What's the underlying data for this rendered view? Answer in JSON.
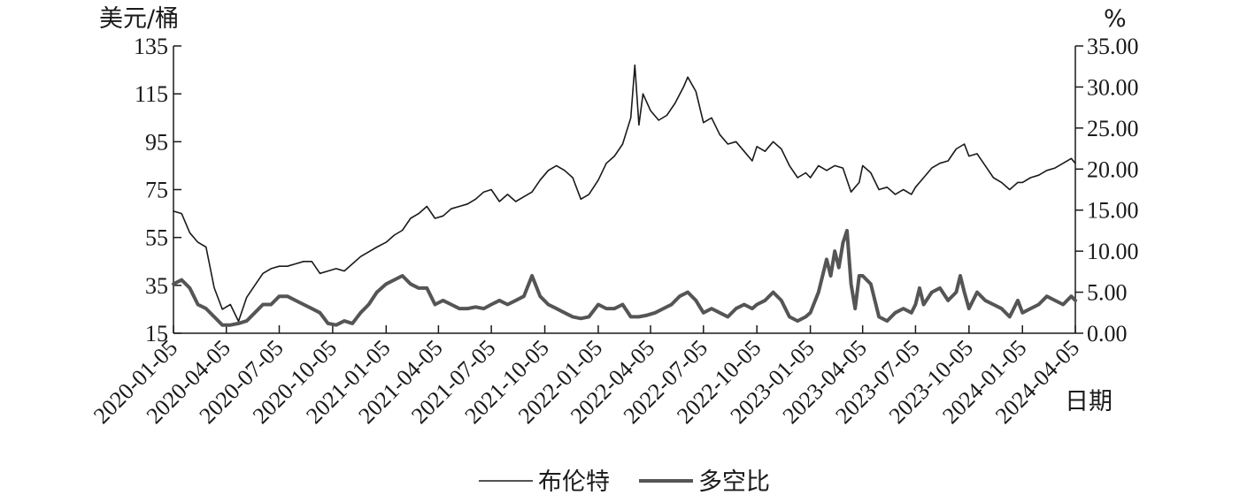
{
  "chart_data": {
    "type": "line",
    "left_axis": {
      "unit": "美元/桶",
      "ticks": [
        "15",
        "35",
        "55",
        "75",
        "95",
        "115",
        "135"
      ],
      "ylim": [
        15,
        135
      ]
    },
    "right_axis": {
      "unit": "%",
      "ticks": [
        "0.00",
        "5.00",
        "10.00",
        "15.00",
        "20.00",
        "25.00",
        "30.00",
        "35.00"
      ],
      "ylim": [
        0,
        35
      ]
    },
    "x_axis": {
      "label": "日期",
      "ticks": [
        "2020-01-05",
        "2020-04-05",
        "2020-07-05",
        "2020-10-05",
        "2021-01-05",
        "2021-04-05",
        "2021-07-05",
        "2021-10-05",
        "2022-01-05",
        "2022-04-05",
        "2022-07-05",
        "2022-10-05",
        "2023-01-05",
        "2023-04-05",
        "2023-07-05",
        "2023-10-05",
        "2024-01-05",
        "2024-04-05"
      ],
      "range": [
        "2020-01-05",
        "2024-04-05"
      ]
    },
    "legend": {
      "position": "bottom-center"
    },
    "series": [
      {
        "name": "布伦特",
        "axis": "left",
        "color": "#1a1a1a",
        "points": [
          [
            "2020-01-05",
            66
          ],
          [
            "2020-01-19",
            65
          ],
          [
            "2020-02-02",
            57
          ],
          [
            "2020-02-16",
            53
          ],
          [
            "2020-03-01",
            51
          ],
          [
            "2020-03-15",
            34
          ],
          [
            "2020-03-29",
            25
          ],
          [
            "2020-04-12",
            27
          ],
          [
            "2020-04-26",
            20
          ],
          [
            "2020-05-10",
            30
          ],
          [
            "2020-05-24",
            35
          ],
          [
            "2020-06-07",
            40
          ],
          [
            "2020-06-21",
            42
          ],
          [
            "2020-07-05",
            43
          ],
          [
            "2020-07-19",
            43
          ],
          [
            "2020-08-02",
            44
          ],
          [
            "2020-08-16",
            45
          ],
          [
            "2020-08-30",
            45
          ],
          [
            "2020-09-13",
            40
          ],
          [
            "2020-09-27",
            41
          ],
          [
            "2020-10-11",
            42
          ],
          [
            "2020-10-25",
            41
          ],
          [
            "2020-11-08",
            44
          ],
          [
            "2020-11-22",
            47
          ],
          [
            "2020-12-06",
            49
          ],
          [
            "2020-12-20",
            51
          ],
          [
            "2021-01-05",
            53
          ],
          [
            "2021-01-19",
            56
          ],
          [
            "2021-02-02",
            58
          ],
          [
            "2021-02-16",
            63
          ],
          [
            "2021-03-02",
            65
          ],
          [
            "2021-03-16",
            68
          ],
          [
            "2021-03-30",
            63
          ],
          [
            "2021-04-13",
            64
          ],
          [
            "2021-04-27",
            67
          ],
          [
            "2021-05-11",
            68
          ],
          [
            "2021-05-25",
            69
          ],
          [
            "2021-06-08",
            71
          ],
          [
            "2021-06-22",
            74
          ],
          [
            "2021-07-05",
            75
          ],
          [
            "2021-07-19",
            70
          ],
          [
            "2021-08-02",
            73
          ],
          [
            "2021-08-16",
            70
          ],
          [
            "2021-08-30",
            72
          ],
          [
            "2021-09-13",
            74
          ],
          [
            "2021-09-27",
            79
          ],
          [
            "2021-10-11",
            83
          ],
          [
            "2021-10-25",
            85
          ],
          [
            "2021-11-08",
            83
          ],
          [
            "2021-11-22",
            80
          ],
          [
            "2021-12-06",
            71
          ],
          [
            "2021-12-20",
            73
          ],
          [
            "2022-01-05",
            79
          ],
          [
            "2022-01-19",
            86
          ],
          [
            "2022-02-02",
            89
          ],
          [
            "2022-02-16",
            94
          ],
          [
            "2022-03-02",
            105
          ],
          [
            "2022-03-09",
            127
          ],
          [
            "2022-03-16",
            102
          ],
          [
            "2022-03-23",
            115
          ],
          [
            "2022-04-05",
            108
          ],
          [
            "2022-04-19",
            104
          ],
          [
            "2022-05-03",
            106
          ],
          [
            "2022-05-17",
            111
          ],
          [
            "2022-06-01",
            118
          ],
          [
            "2022-06-08",
            122
          ],
          [
            "2022-06-22",
            116
          ],
          [
            "2022-07-05",
            103
          ],
          [
            "2022-07-19",
            105
          ],
          [
            "2022-08-02",
            98
          ],
          [
            "2022-08-16",
            94
          ],
          [
            "2022-08-30",
            95
          ],
          [
            "2022-09-13",
            91
          ],
          [
            "2022-09-27",
            87
          ],
          [
            "2022-10-05",
            93
          ],
          [
            "2022-10-19",
            91
          ],
          [
            "2022-11-02",
            95
          ],
          [
            "2022-11-16",
            92
          ],
          [
            "2022-11-30",
            85
          ],
          [
            "2022-12-14",
            80
          ],
          [
            "2022-12-28",
            82
          ],
          [
            "2023-01-05",
            80
          ],
          [
            "2023-01-19",
            85
          ],
          [
            "2023-02-02",
            83
          ],
          [
            "2023-02-16",
            85
          ],
          [
            "2023-03-02",
            84
          ],
          [
            "2023-03-16",
            74
          ],
          [
            "2023-03-30",
            78
          ],
          [
            "2023-04-05",
            85
          ],
          [
            "2023-04-19",
            82
          ],
          [
            "2023-05-03",
            75
          ],
          [
            "2023-05-17",
            76
          ],
          [
            "2023-05-31",
            73
          ],
          [
            "2023-06-14",
            75
          ],
          [
            "2023-06-28",
            73
          ],
          [
            "2023-07-05",
            76
          ],
          [
            "2023-07-19",
            80
          ],
          [
            "2023-08-02",
            84
          ],
          [
            "2023-08-16",
            86
          ],
          [
            "2023-08-30",
            87
          ],
          [
            "2023-09-13",
            92
          ],
          [
            "2023-09-27",
            94
          ],
          [
            "2023-10-05",
            89
          ],
          [
            "2023-10-19",
            90
          ],
          [
            "2023-11-02",
            85
          ],
          [
            "2023-11-16",
            80
          ],
          [
            "2023-11-30",
            78
          ],
          [
            "2023-12-14",
            75
          ],
          [
            "2023-12-28",
            78
          ],
          [
            "2024-01-05",
            78
          ],
          [
            "2024-01-19",
            80
          ],
          [
            "2024-02-02",
            81
          ],
          [
            "2024-02-16",
            83
          ],
          [
            "2024-03-01",
            84
          ],
          [
            "2024-03-15",
            86
          ],
          [
            "2024-03-29",
            88
          ],
          [
            "2024-04-05",
            86
          ]
        ]
      },
      {
        "name": "多空比",
        "axis": "right",
        "color": "#555555",
        "points": [
          [
            "2020-01-05",
            6.0
          ],
          [
            "2020-01-19",
            6.5
          ],
          [
            "2020-02-02",
            5.5
          ],
          [
            "2020-02-16",
            3.5
          ],
          [
            "2020-03-01",
            3.0
          ],
          [
            "2020-03-15",
            2.0
          ],
          [
            "2020-03-29",
            1.0
          ],
          [
            "2020-04-12",
            1.0
          ],
          [
            "2020-04-26",
            1.2
          ],
          [
            "2020-05-10",
            1.5
          ],
          [
            "2020-05-24",
            2.5
          ],
          [
            "2020-06-07",
            3.5
          ],
          [
            "2020-06-21",
            3.5
          ],
          [
            "2020-07-05",
            4.5
          ],
          [
            "2020-07-19",
            4.5
          ],
          [
            "2020-08-02",
            4.0
          ],
          [
            "2020-08-16",
            3.5
          ],
          [
            "2020-08-30",
            3.0
          ],
          [
            "2020-09-13",
            2.5
          ],
          [
            "2020-09-27",
            1.2
          ],
          [
            "2020-10-11",
            1.0
          ],
          [
            "2020-10-25",
            1.5
          ],
          [
            "2020-11-08",
            1.2
          ],
          [
            "2020-11-22",
            2.5
          ],
          [
            "2020-12-06",
            3.5
          ],
          [
            "2020-12-20",
            5.0
          ],
          [
            "2021-01-05",
            6.0
          ],
          [
            "2021-01-19",
            6.5
          ],
          [
            "2021-02-02",
            7.0
          ],
          [
            "2021-02-16",
            6.0
          ],
          [
            "2021-03-02",
            5.5
          ],
          [
            "2021-03-16",
            5.5
          ],
          [
            "2021-03-30",
            3.5
          ],
          [
            "2021-04-13",
            4.0
          ],
          [
            "2021-04-27",
            3.5
          ],
          [
            "2021-05-11",
            3.0
          ],
          [
            "2021-05-25",
            3.0
          ],
          [
            "2021-06-08",
            3.2
          ],
          [
            "2021-06-22",
            3.0
          ],
          [
            "2021-07-05",
            3.5
          ],
          [
            "2021-07-19",
            4.0
          ],
          [
            "2021-08-02",
            3.5
          ],
          [
            "2021-08-16",
            4.0
          ],
          [
            "2021-08-30",
            4.5
          ],
          [
            "2021-09-13",
            7.0
          ],
          [
            "2021-09-27",
            4.5
          ],
          [
            "2021-10-11",
            3.5
          ],
          [
            "2021-10-25",
            3.0
          ],
          [
            "2021-11-08",
            2.5
          ],
          [
            "2021-11-22",
            2.0
          ],
          [
            "2021-12-06",
            1.8
          ],
          [
            "2021-12-20",
            2.0
          ],
          [
            "2022-01-05",
            3.5
          ],
          [
            "2022-01-19",
            3.0
          ],
          [
            "2022-02-02",
            3.0
          ],
          [
            "2022-02-16",
            3.5
          ],
          [
            "2022-03-02",
            2.0
          ],
          [
            "2022-03-16",
            2.0
          ],
          [
            "2022-03-30",
            2.2
          ],
          [
            "2022-04-13",
            2.5
          ],
          [
            "2022-04-27",
            3.0
          ],
          [
            "2022-05-11",
            3.5
          ],
          [
            "2022-05-25",
            4.5
          ],
          [
            "2022-06-08",
            5.0
          ],
          [
            "2022-06-22",
            4.0
          ],
          [
            "2022-07-05",
            2.5
          ],
          [
            "2022-07-19",
            3.0
          ],
          [
            "2022-08-02",
            2.5
          ],
          [
            "2022-08-16",
            2.0
          ],
          [
            "2022-08-30",
            3.0
          ],
          [
            "2022-09-13",
            3.5
          ],
          [
            "2022-09-27",
            3.0
          ],
          [
            "2022-10-05",
            3.5
          ],
          [
            "2022-10-19",
            4.0
          ],
          [
            "2022-11-02",
            5.0
          ],
          [
            "2022-11-16",
            4.0
          ],
          [
            "2022-11-30",
            2.0
          ],
          [
            "2022-12-14",
            1.5
          ],
          [
            "2022-12-28",
            2.0
          ],
          [
            "2023-01-05",
            2.5
          ],
          [
            "2023-01-19",
            5.0
          ],
          [
            "2023-02-02",
            9.0
          ],
          [
            "2023-02-09",
            7.0
          ],
          [
            "2023-02-16",
            10.0
          ],
          [
            "2023-02-23",
            8.0
          ],
          [
            "2023-03-02",
            11.0
          ],
          [
            "2023-03-09",
            12.5
          ],
          [
            "2023-03-16",
            6.0
          ],
          [
            "2023-03-23",
            3.0
          ],
          [
            "2023-03-30",
            7.0
          ],
          [
            "2023-04-05",
            7.0
          ],
          [
            "2023-04-19",
            6.0
          ],
          [
            "2023-05-03",
            2.0
          ],
          [
            "2023-05-17",
            1.5
          ],
          [
            "2023-05-31",
            2.5
          ],
          [
            "2023-06-14",
            3.0
          ],
          [
            "2023-06-28",
            2.5
          ],
          [
            "2023-07-05",
            3.5
          ],
          [
            "2023-07-12",
            5.5
          ],
          [
            "2023-07-19",
            3.5
          ],
          [
            "2023-08-02",
            5.0
          ],
          [
            "2023-08-16",
            5.5
          ],
          [
            "2023-08-30",
            4.0
          ],
          [
            "2023-09-13",
            5.0
          ],
          [
            "2023-09-20",
            7.0
          ],
          [
            "2023-09-27",
            5.0
          ],
          [
            "2023-10-05",
            3.0
          ],
          [
            "2023-10-19",
            5.0
          ],
          [
            "2023-11-02",
            4.0
          ],
          [
            "2023-11-16",
            3.5
          ],
          [
            "2023-11-30",
            3.0
          ],
          [
            "2023-12-14",
            2.0
          ],
          [
            "2023-12-28",
            4.0
          ],
          [
            "2024-01-05",
            2.5
          ],
          [
            "2024-01-19",
            3.0
          ],
          [
            "2024-02-02",
            3.5
          ],
          [
            "2024-02-16",
            4.5
          ],
          [
            "2024-03-01",
            4.0
          ],
          [
            "2024-03-15",
            3.5
          ],
          [
            "2024-03-29",
            4.5
          ],
          [
            "2024-04-05",
            4.0
          ]
        ]
      }
    ]
  }
}
